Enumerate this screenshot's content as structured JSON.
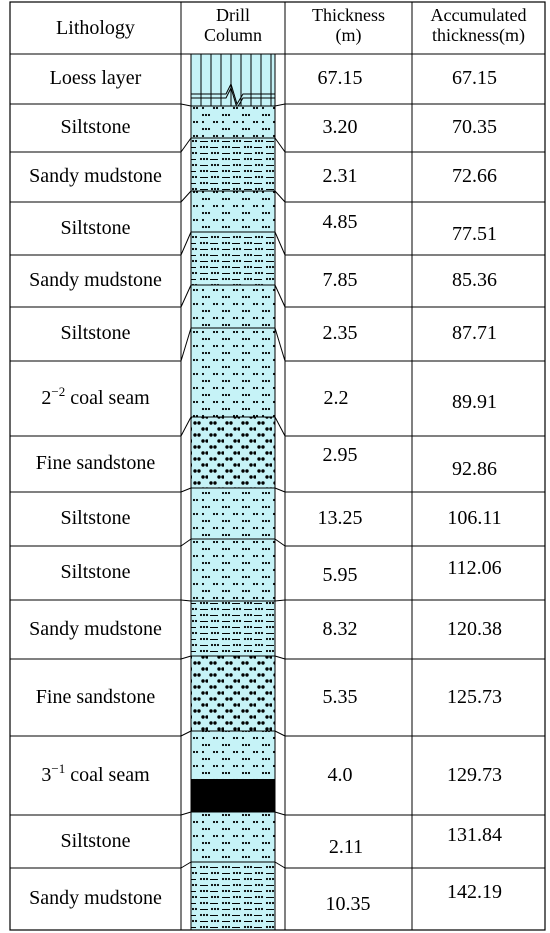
{
  "headers": {
    "lithology": "Lithology",
    "drill_column_line1": "Drill",
    "drill_column_line2": "Column",
    "thickness_line1": "Thickness",
    "thickness_line2": "(m)",
    "accum_line1": "Accumulated",
    "accum_line2": "thickness(m)"
  },
  "colors": {
    "column_fill": "#c6f3f7",
    "coal_fill": "#000000",
    "dot": "#000000"
  },
  "rows": [
    {
      "lithology": "Loess layer",
      "thickness": "67.15",
      "accumulated": "67.15",
      "pattern": "loess"
    },
    {
      "lithology": "Siltstone",
      "thickness": "3.20",
      "accumulated": "70.35",
      "pattern": "siltstone"
    },
    {
      "lithology": "Sandy mudstone",
      "thickness": "2.31",
      "accumulated": "72.66",
      "pattern": "mudstone"
    },
    {
      "lithology": "Siltstone",
      "thickness": "4.85",
      "accumulated": "77.51",
      "pattern": "siltstone"
    },
    {
      "lithology": "Sandy mudstone",
      "thickness": "7.85",
      "accumulated": "85.36",
      "pattern": "mudstone"
    },
    {
      "lithology": "Siltstone",
      "thickness": "2.35",
      "accumulated": "87.71",
      "pattern": "siltstone"
    },
    {
      "lithology_pre": "2",
      "lithology_sup": "−2",
      "lithology_post": " coal seam",
      "thickness": "2.2",
      "accumulated": "89.91",
      "pattern": "coal"
    },
    {
      "lithology": "Fine sandstone",
      "thickness": "2.95",
      "accumulated": "92.86",
      "pattern": "sandstone"
    },
    {
      "lithology": "Siltstone",
      "thickness": "13.25",
      "accumulated": "106.11",
      "pattern": "siltstone"
    },
    {
      "lithology": "Siltstone",
      "thickness": "5.95",
      "accumulated": "112.06",
      "pattern": "siltstone"
    },
    {
      "lithology": "Sandy mudstone",
      "thickness": "8.32",
      "accumulated": "120.38",
      "pattern": "mudstone"
    },
    {
      "lithology": "Fine sandstone",
      "thickness": "5.35",
      "accumulated": "125.73",
      "pattern": "sandstone"
    },
    {
      "lithology_pre": "3",
      "lithology_sup": "−1",
      "lithology_post": " coal seam",
      "thickness": "4.0",
      "accumulated": "129.73",
      "pattern": "coal"
    },
    {
      "lithology": "Siltstone",
      "thickness": "2.11",
      "accumulated": "131.84",
      "pattern": "siltstone"
    },
    {
      "lithology": "Sandy mudstone",
      "thickness": "10.35",
      "accumulated": "142.19",
      "pattern": "mudstone"
    }
  ]
}
